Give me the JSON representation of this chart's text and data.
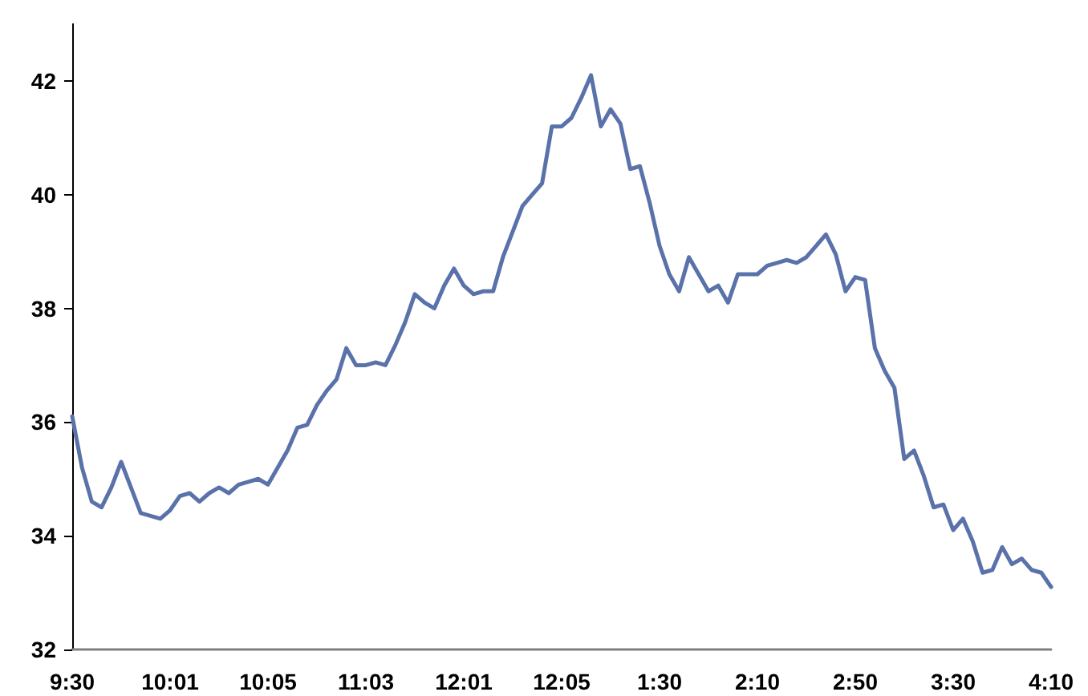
{
  "chart_data": {
    "type": "line",
    "categories": [
      "9:30",
      null,
      null,
      null,
      null,
      null,
      null,
      null,
      null,
      null,
      "10:01",
      null,
      null,
      null,
      null,
      null,
      null,
      null,
      null,
      null,
      "10:05",
      null,
      null,
      null,
      null,
      null,
      null,
      null,
      null,
      null,
      "11:03",
      null,
      null,
      null,
      null,
      null,
      null,
      null,
      null,
      null,
      "12:01",
      null,
      null,
      null,
      null,
      null,
      null,
      null,
      null,
      null,
      "12:05",
      null,
      null,
      null,
      null,
      null,
      null,
      null,
      null,
      null,
      "1:30",
      null,
      null,
      null,
      null,
      null,
      null,
      null,
      null,
      null,
      "2:10",
      null,
      null,
      null,
      null,
      null,
      null,
      null,
      null,
      null,
      "2:50",
      null,
      null,
      null,
      null,
      null,
      null,
      null,
      null,
      null,
      "3:30",
      null,
      null,
      null,
      null,
      null,
      null,
      null,
      null,
      null,
      "4:10"
    ],
    "series": [
      {
        "color": "#5a72aa",
        "values": [
          36.1,
          35.2,
          34.6,
          34.5,
          34.85,
          35.3,
          34.85,
          34.4,
          34.35,
          34.3,
          34.45,
          34.7,
          34.75,
          34.6,
          34.75,
          34.85,
          34.75,
          34.9,
          34.95,
          35.0,
          34.9,
          35.2,
          35.5,
          35.9,
          35.95,
          36.3,
          36.55,
          36.75,
          37.3,
          37.0,
          37.0,
          37.05,
          37.0,
          37.35,
          37.75,
          38.25,
          38.1,
          38.0,
          38.4,
          38.7,
          38.4,
          38.25,
          38.3,
          38.3,
          38.9,
          39.35,
          39.8,
          40.0,
          40.2,
          41.2,
          41.2,
          41.35,
          41.7,
          42.1,
          41.2,
          41.5,
          41.25,
          40.45,
          40.5,
          39.85,
          39.1,
          38.6,
          38.3,
          38.9,
          38.6,
          38.3,
          38.4,
          38.1,
          38.6,
          38.6,
          38.6,
          38.75,
          38.8,
          38.85,
          38.8,
          38.9,
          39.1,
          39.3,
          38.95,
          38.3,
          38.55,
          38.5,
          37.3,
          36.9,
          36.6,
          35.35,
          35.5,
          35.05,
          34.5,
          34.55,
          34.1,
          34.3,
          33.9,
          33.35,
          33.4,
          33.8,
          33.5,
          33.6,
          33.4,
          33.35,
          33.1
        ]
      }
    ],
    "ylim": [
      32,
      43
    ],
    "yticks": [
      32,
      34,
      36,
      38,
      40,
      42
    ],
    "grid": false,
    "marker": "none",
    "line_style": "solid"
  }
}
